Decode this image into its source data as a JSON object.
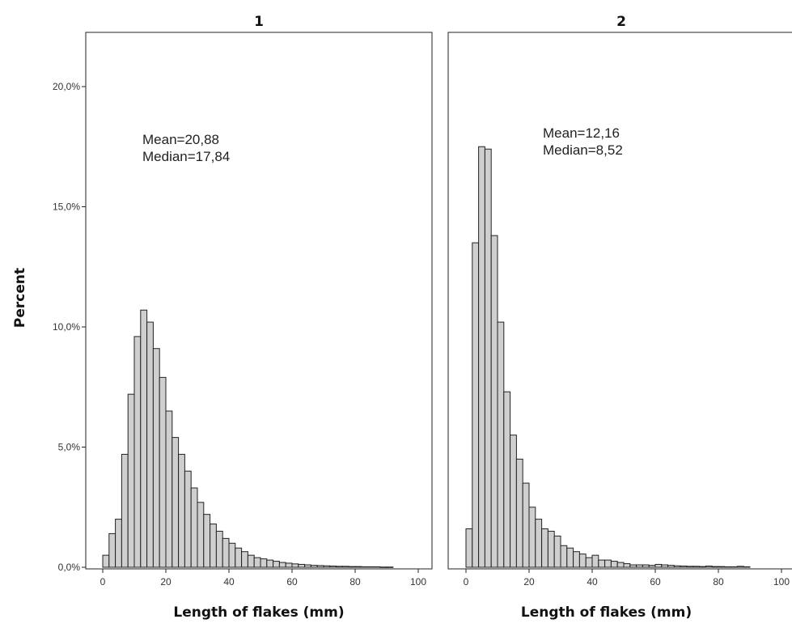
{
  "chart_data": {
    "type": "bar",
    "ylabel": "Percent",
    "y_ticks": [
      "0,0%",
      "5,0%",
      "10,0%",
      "15,0%",
      "20,0%"
    ],
    "ylim": [
      0,
      22
    ],
    "x_ticks": [
      "0",
      "20",
      "40",
      "60",
      "80",
      "100"
    ],
    "xlim": [
      -5,
      103
    ],
    "bin_width": 2,
    "panels": [
      {
        "title": "1",
        "xlabel": "Length of flakes (mm)",
        "mean_label": "Mean=20,88",
        "median_label": "Median=17,84",
        "bins": [
          1,
          3,
          5,
          7,
          9,
          11,
          13,
          15,
          17,
          19,
          21,
          23,
          25,
          27,
          29,
          31,
          33,
          35,
          37,
          39,
          41,
          43,
          45,
          47,
          49,
          51,
          53,
          55,
          57,
          59,
          61,
          63,
          65,
          67,
          69,
          71,
          73,
          75,
          77,
          79,
          81,
          83,
          85,
          87,
          89,
          91
        ],
        "values": [
          0.5,
          1.4,
          2.0,
          4.7,
          7.2,
          9.6,
          10.7,
          10.2,
          9.1,
          7.9,
          6.5,
          5.4,
          4.7,
          4.0,
          3.3,
          2.7,
          2.2,
          1.8,
          1.5,
          1.2,
          1.0,
          0.8,
          0.65,
          0.5,
          0.4,
          0.35,
          0.3,
          0.25,
          0.2,
          0.17,
          0.14,
          0.12,
          0.1,
          0.08,
          0.07,
          0.06,
          0.05,
          0.04,
          0.04,
          0.03,
          0.03,
          0.02,
          0.02,
          0.02,
          0.01,
          0.01
        ]
      },
      {
        "title": "2",
        "xlabel": "Length of flakes (mm)",
        "mean_label": "Mean=12,16",
        "median_label": "Median=8,52",
        "bins": [
          1,
          3,
          5,
          7,
          9,
          11,
          13,
          15,
          17,
          19,
          21,
          23,
          25,
          27,
          29,
          31,
          33,
          35,
          37,
          39,
          41,
          43,
          45,
          47,
          49,
          51,
          53,
          55,
          57,
          59,
          61,
          63,
          65,
          67,
          69,
          71,
          73,
          75,
          77,
          79,
          81,
          83,
          85,
          87,
          89
        ],
        "values": [
          1.6,
          13.5,
          17.5,
          17.4,
          13.8,
          10.2,
          7.3,
          5.5,
          4.5,
          3.5,
          2.5,
          2.0,
          1.6,
          1.5,
          1.3,
          0.9,
          0.8,
          0.65,
          0.55,
          0.4,
          0.5,
          0.3,
          0.3,
          0.25,
          0.2,
          0.15,
          0.1,
          0.1,
          0.1,
          0.08,
          0.12,
          0.1,
          0.08,
          0.06,
          0.05,
          0.04,
          0.04,
          0.03,
          0.05,
          0.03,
          0.03,
          0.02,
          0.02,
          0.04,
          0.02
        ]
      }
    ],
    "grid": false,
    "legend": "none"
  }
}
